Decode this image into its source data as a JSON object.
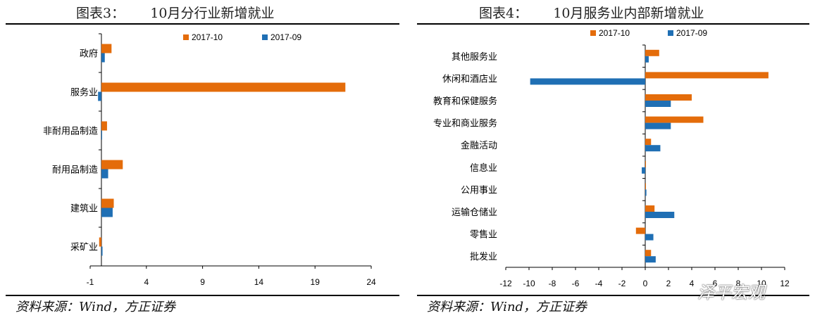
{
  "watermark": "泽平宏观",
  "chart_data": [
    {
      "type": "bar",
      "orientation": "horizontal",
      "fig_label": "图表3：",
      "title": "10月分行业新增就业",
      "source": "资料来源：Wind，方正证券",
      "categories": [
        "政府",
        "服务业",
        "非耐用品制造",
        "耐用品制造",
        "建筑业",
        "采矿业"
      ],
      "series": [
        {
          "name": "2017-10",
          "color": "#E46C0A",
          "values": [
            0.9,
            21.7,
            0.5,
            1.9,
            1.1,
            -0.2
          ]
        },
        {
          "name": "2017-09",
          "color": "#1F6FB4",
          "values": [
            0.3,
            -0.3,
            0.0,
            0.6,
            1.0,
            0.1
          ]
        }
      ],
      "xlim": [
        -1,
        24
      ],
      "xticks": [
        -1,
        4,
        9,
        14,
        19,
        24
      ],
      "legend": "top"
    },
    {
      "type": "bar",
      "orientation": "horizontal",
      "fig_label": "图表4：",
      "title": "10月服务业内部新增就业",
      "source": "资料来源：Wind，方正证券",
      "categories": [
        "其他服务业",
        "休闲和酒店业",
        "教育和保健服务",
        "专业和商业服务",
        "金融活动",
        "信息业",
        "公用事业",
        "运输仓储业",
        "零售业",
        "批发业"
      ],
      "series": [
        {
          "name": "2017-10",
          "color": "#E46C0A",
          "values": [
            1.2,
            10.6,
            4.0,
            5.0,
            0.5,
            0.0,
            0.0,
            0.8,
            -0.8,
            0.5
          ]
        },
        {
          "name": "2017-09",
          "color": "#1F6FB4",
          "values": [
            0.3,
            -9.9,
            2.2,
            2.2,
            1.3,
            -0.3,
            0.1,
            2.5,
            0.7,
            0.9
          ]
        }
      ],
      "xlim": [
        -12,
        12
      ],
      "xticks": [
        -12,
        -10,
        -8,
        -6,
        -4,
        -2,
        0,
        2,
        4,
        6,
        8,
        10,
        12
      ],
      "legend": "top"
    }
  ]
}
